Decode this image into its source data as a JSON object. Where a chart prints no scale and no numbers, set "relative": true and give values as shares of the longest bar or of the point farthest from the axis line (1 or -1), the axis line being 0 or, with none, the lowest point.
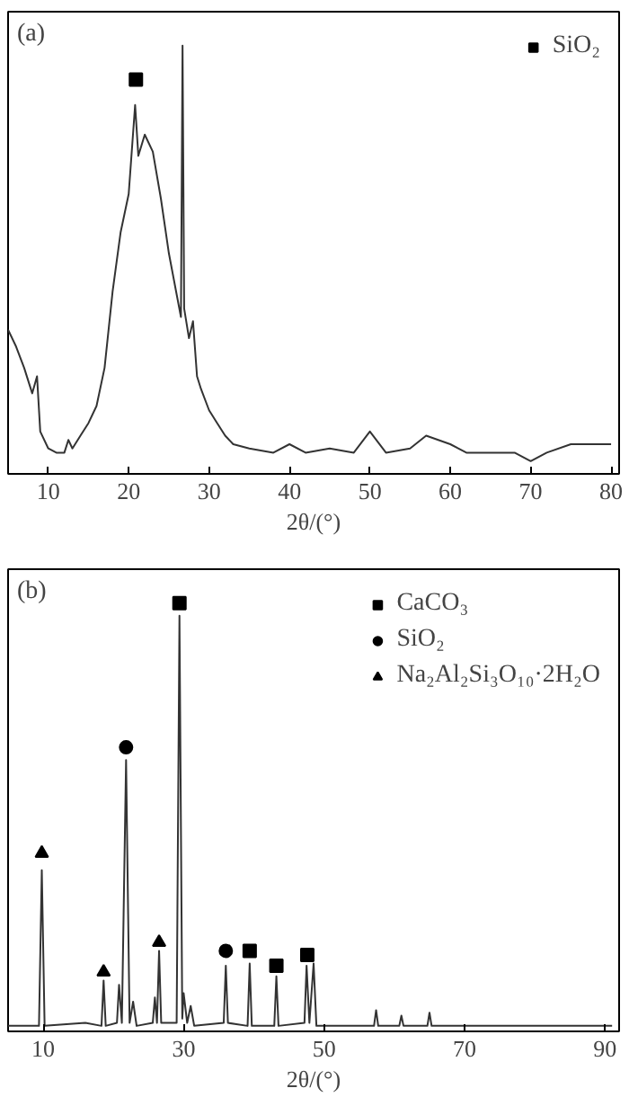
{
  "chart_data": [
    {
      "type": "line",
      "xlabel": "2θ/(°)",
      "xlim": [
        5,
        81
      ],
      "xticks": [
        10,
        20,
        30,
        40,
        50,
        60,
        70,
        80
      ],
      "tick_labels": "x",
      "relative": true,
      "legend": "top right",
      "annotations": [
        "(a)"
      ],
      "series": [
        {
          "color": "#333333",
          "x": [
            5,
            6,
            7,
            8,
            8.6,
            9,
            10,
            11,
            12,
            12.5,
            13,
            14,
            15,
            16,
            17,
            18,
            19,
            20,
            20.8,
            21.2,
            22,
            23,
            24,
            25,
            26,
            26.5,
            26.7,
            26.9,
            27.5,
            28,
            28.5,
            29,
            30,
            31,
            32,
            33,
            35,
            38,
            40,
            42,
            45,
            48,
            50,
            52,
            55,
            57,
            60,
            62,
            65,
            68,
            70,
            72,
            75,
            78,
            80
          ],
          "values": [
            0.33,
            0.29,
            0.24,
            0.18,
            0.22,
            0.09,
            0.05,
            0.04,
            0.04,
            0.07,
            0.05,
            0.08,
            0.11,
            0.15,
            0.24,
            0.42,
            0.56,
            0.65,
            0.86,
            0.74,
            0.79,
            0.75,
            0.64,
            0.51,
            0.41,
            0.36,
            1.0,
            0.38,
            0.31,
            0.35,
            0.22,
            0.19,
            0.14,
            0.11,
            0.08,
            0.06,
            0.05,
            0.04,
            0.06,
            0.04,
            0.05,
            0.04,
            0.09,
            0.04,
            0.05,
            0.08,
            0.06,
            0.04,
            0.04,
            0.04,
            0.02,
            0.04,
            0.06,
            0.06,
            0.06
          ]
        },
        {
          "type": "scatter",
          "name": "SiO₂",
          "color": "#000000",
          "marker": "square",
          "x": [
            20.9
          ],
          "values": [
            0.92
          ]
        }
      ]
    },
    {
      "type": "line",
      "xlabel": "2θ/(°)",
      "xlim": [
        5,
        92
      ],
      "xticks": [
        10,
        30,
        50,
        70,
        90
      ],
      "tick_labels": "x",
      "relative": true,
      "legend": "top right",
      "annotations": [
        "(b)"
      ],
      "series": [
        {
          "color": "#333333",
          "x": [
            5,
            9.4,
            9.8,
            10.2,
            16,
            18.3,
            18.6,
            18.9,
            20.5,
            20.8,
            21.2,
            21.8,
            22.3,
            22.8,
            23.3,
            25.6,
            25.9,
            26.2,
            26.5,
            26.8,
            29.0,
            29.4,
            29.8,
            30,
            30.5,
            31,
            31.5,
            35.7,
            36,
            36.3,
            39.1,
            39.4,
            39.7,
            42.9,
            43.2,
            43.5,
            47.2,
            47.5,
            47.9,
            48.5,
            48.9,
            57.1,
            57.4,
            57.7,
            60.7,
            61,
            61.3,
            64.7,
            65,
            65.3,
            91
          ],
          "values": [
            0.003,
            0.003,
            0.37,
            0.003,
            0.01,
            0.003,
            0.11,
            0.003,
            0.01,
            0.1,
            0.01,
            0.63,
            0.01,
            0.06,
            0.003,
            0.01,
            0.07,
            0.01,
            0.18,
            0.01,
            0.01,
            0.97,
            0.02,
            0.08,
            0.01,
            0.05,
            0.003,
            0.01,
            0.145,
            0.01,
            0.003,
            0.15,
            0.003,
            0.003,
            0.12,
            0.003,
            0.01,
            0.145,
            0.01,
            0.15,
            0.003,
            0.003,
            0.04,
            0.003,
            0.003,
            0.027,
            0.003,
            0.003,
            0.034,
            0.003,
            0.003
          ]
        },
        {
          "type": "scatter",
          "name": "CaCO₃",
          "color": "#000000",
          "marker": "square",
          "x": [
            29.4,
            39.4,
            43.2,
            47.6
          ],
          "values": [
            1.0,
            0.18,
            0.145,
            0.17
          ]
        },
        {
          "type": "scatter",
          "name": "SiO₂",
          "color": "#000000",
          "marker": "circle",
          "x": [
            21.8,
            36
          ],
          "values": [
            0.66,
            0.18
          ]
        },
        {
          "type": "scatter",
          "name": "Na₂Al₂Si₃O₁₀·2H₂O",
          "color": "#000000",
          "marker": "triangle",
          "x": [
            9.8,
            18.6,
            26.5
          ],
          "values": [
            0.41,
            0.13,
            0.2
          ]
        }
      ]
    }
  ]
}
